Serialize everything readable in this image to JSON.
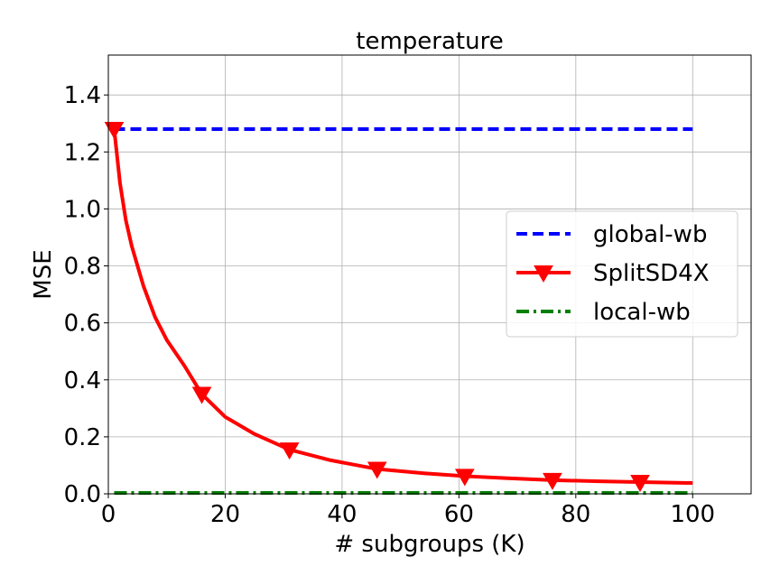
{
  "chart_data": {
    "type": "line",
    "title": "temperature",
    "xlabel": "# subgroups (K)",
    "ylabel": "MSE",
    "xlim": [
      0,
      110
    ],
    "ylim": [
      0,
      1.54
    ],
    "x_ticks": [
      0,
      20,
      40,
      60,
      80,
      100
    ],
    "y_ticks": [
      0.0,
      0.2,
      0.4,
      0.6,
      0.8,
      1.0,
      1.2,
      1.4
    ],
    "x_tick_labels": [
      "0",
      "20",
      "40",
      "60",
      "80",
      "100"
    ],
    "y_tick_labels": [
      "0.0",
      "0.2",
      "0.4",
      "0.6",
      "0.8",
      "1.0",
      "1.2",
      "1.4"
    ],
    "grid": true,
    "legend_position": "center-right",
    "series": [
      {
        "name": "global-wb",
        "color": "#0000ff",
        "style": "dashed",
        "x": [
          1,
          100
        ],
        "y": [
          1.28,
          1.28
        ]
      },
      {
        "name": "SplitSD4X",
        "color": "#ff0000",
        "style": "solid",
        "marker": "triangle-down",
        "marker_x": [
          1,
          16,
          31,
          46,
          61,
          76,
          91
        ],
        "marker_y": [
          1.28,
          0.35,
          0.155,
          0.087,
          0.062,
          0.048,
          0.041
        ],
        "x": [
          1,
          2,
          3,
          4,
          5,
          6,
          8,
          10,
          13,
          16,
          20,
          25,
          31,
          38,
          46,
          54,
          61,
          68,
          76,
          84,
          91,
          100
        ],
        "y": [
          1.28,
          1.09,
          0.96,
          0.87,
          0.8,
          0.73,
          0.62,
          0.54,
          0.45,
          0.35,
          0.27,
          0.21,
          0.155,
          0.118,
          0.087,
          0.072,
          0.062,
          0.055,
          0.048,
          0.044,
          0.041,
          0.038
        ]
      },
      {
        "name": "local-wb",
        "color": "#008000",
        "style": "dashdot",
        "x": [
          1,
          100
        ],
        "y": [
          0.003,
          0.003
        ]
      }
    ]
  }
}
